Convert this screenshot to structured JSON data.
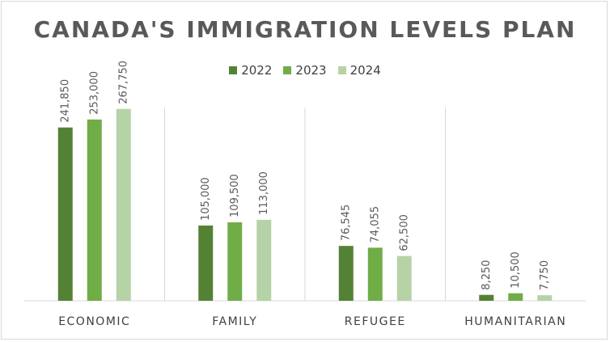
{
  "chart_data": {
    "type": "bar",
    "title": "CANADA'S IMMIGRATION LEVELS PLAN",
    "categories": [
      "ECONOMIC",
      "FAMILY",
      "REFUGEE",
      "HUMANITARIAN"
    ],
    "series": [
      {
        "name": "2022",
        "values": [
          241850,
          105000,
          76545,
          8250
        ],
        "labels": [
          "241,850",
          "105,000",
          "76,545",
          "8,250"
        ],
        "color": "#548235"
      },
      {
        "name": "2023",
        "values": [
          253000,
          109500,
          74055,
          10500
        ],
        "labels": [
          "253,000",
          "109,500",
          "74,055",
          "10,500"
        ],
        "color": "#70ad47"
      },
      {
        "name": "2024",
        "values": [
          267750,
          113000,
          62500,
          7750
        ],
        "labels": [
          "267,750",
          "113,000",
          "62,500",
          "7,750"
        ],
        "color": "#b5d3a7"
      }
    ],
    "ylim": [
      0,
      290000
    ],
    "grid": false,
    "legend_position": "top"
  }
}
